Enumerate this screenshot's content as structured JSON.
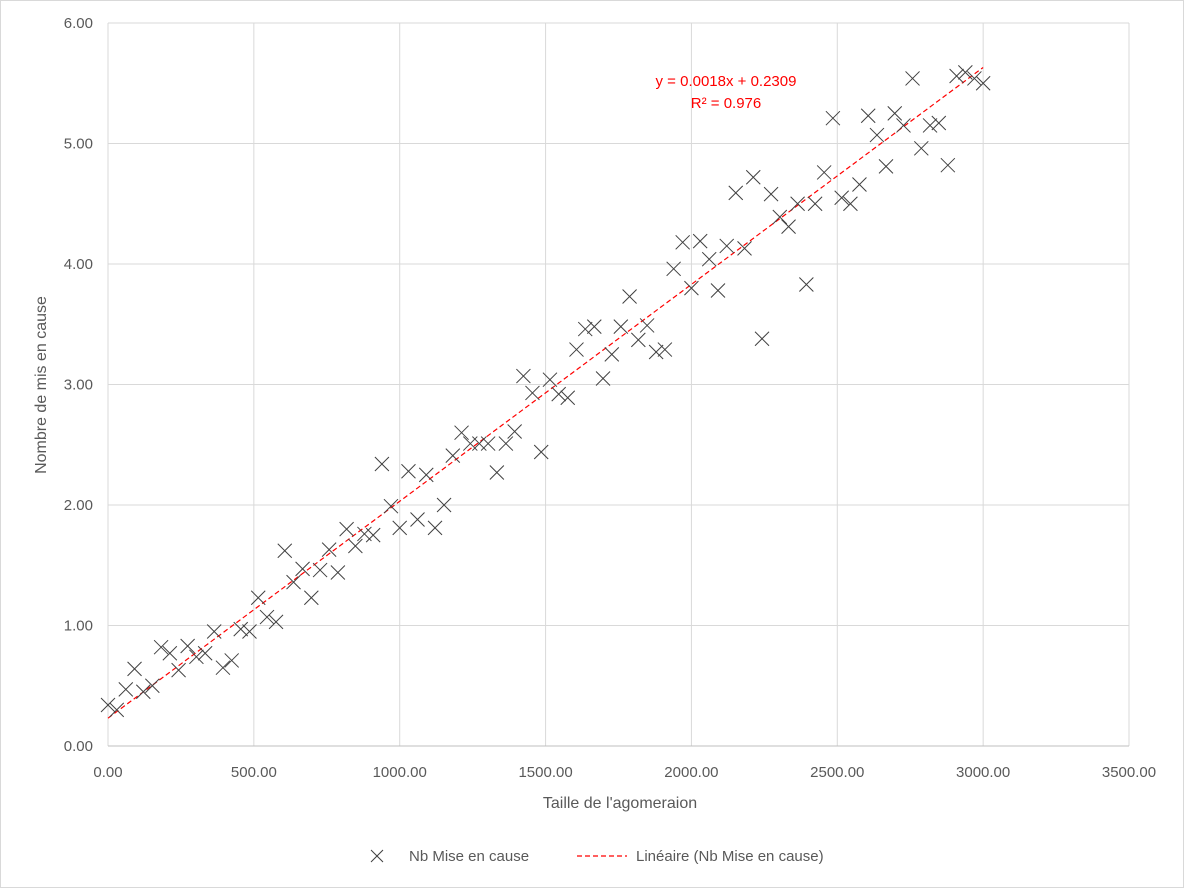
{
  "chart_data": {
    "type": "scatter",
    "title": "",
    "xlabel": "Taille de l'agomeraion",
    "ylabel": "Nombre de mis en cause",
    "xlim": [
      0,
      3500
    ],
    "ylim": [
      0,
      6
    ],
    "x_ticks": [
      "0.00",
      "500.00",
      "1000.00",
      "1500.00",
      "2000.00",
      "2500.00",
      "3000.00",
      "3500.00"
    ],
    "y_ticks": [
      "0.00",
      "1.00",
      "2.00",
      "3.00",
      "4.00",
      "5.00",
      "6.00"
    ],
    "grid": true,
    "legend_position": "bottom",
    "colors": {
      "markers": "#404040",
      "trendline": "#ff0000",
      "grid": "#d9d9d9"
    },
    "series": [
      {
        "name": "Nb Mise en cause",
        "marker": "x",
        "x": [
          0,
          30,
          61,
          91,
          121,
          152,
          182,
          212,
          242,
          273,
          303,
          333,
          364,
          394,
          424,
          455,
          485,
          515,
          545,
          576,
          606,
          636,
          667,
          697,
          727,
          758,
          788,
          818,
          848,
          879,
          909,
          939,
          970,
          1000,
          1030,
          1061,
          1091,
          1121,
          1152,
          1182,
          1212,
          1242,
          1273,
          1303,
          1333,
          1364,
          1394,
          1424,
          1455,
          1485,
          1515,
          1545,
          1576,
          1606,
          1636,
          1667,
          1697,
          1727,
          1758,
          1788,
          1818,
          1848,
          1879,
          1909,
          1939,
          1970,
          2000,
          2030,
          2061,
          2091,
          2121,
          2152,
          2182,
          2212,
          2242,
          2273,
          2303,
          2333,
          2364,
          2394,
          2424,
          2455,
          2485,
          2515,
          2545,
          2576,
          2606,
          2636,
          2667,
          2697,
          2727,
          2758,
          2788,
          2818,
          2848,
          2879,
          2909,
          2939,
          2970,
          3000
        ],
        "y": [
          0.34,
          0.3,
          0.47,
          0.64,
          0.45,
          0.5,
          0.82,
          0.77,
          0.63,
          0.83,
          0.74,
          0.77,
          0.95,
          0.65,
          0.71,
          0.97,
          0.95,
          1.23,
          1.07,
          1.03,
          1.62,
          1.36,
          1.47,
          1.23,
          1.46,
          1.63,
          1.44,
          1.8,
          1.66,
          1.76,
          1.75,
          2.34,
          1.99,
          1.81,
          2.28,
          1.88,
          2.25,
          1.81,
          2.0,
          2.41,
          2.6,
          2.51,
          2.51,
          2.51,
          2.27,
          2.51,
          2.61,
          3.07,
          2.93,
          2.44,
          3.04,
          2.92,
          2.89,
          3.29,
          3.46,
          3.48,
          3.05,
          3.25,
          3.48,
          3.73,
          3.37,
          3.49,
          3.27,
          3.29,
          3.96,
          4.18,
          3.8,
          4.19,
          4.04,
          3.78,
          4.15,
          4.59,
          4.13,
          4.72,
          3.38,
          4.58,
          4.39,
          4.31,
          4.5,
          3.83,
          4.5,
          4.76,
          5.21,
          4.55,
          4.5,
          4.66,
          5.23,
          5.07,
          4.81,
          5.25,
          5.15,
          5.54,
          4.96,
          5.15,
          5.17,
          4.82,
          5.56,
          5.59,
          5.54,
          5.5
        ]
      }
    ],
    "trendline": {
      "name": "Linéaire (Nb Mise en cause)",
      "type": "linear",
      "slope": 0.0018,
      "intercept": 0.2309,
      "x_range": [
        0,
        3000
      ],
      "equation_label": "y = 0.0018x + 0.2309",
      "r2_label": "R² = 0.976"
    }
  }
}
